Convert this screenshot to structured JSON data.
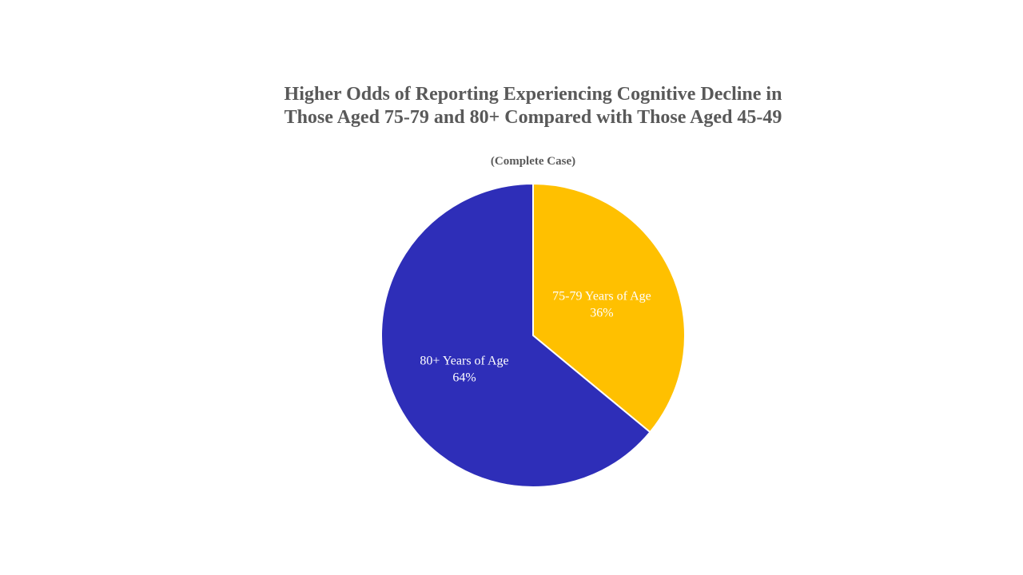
{
  "chart_data": {
    "type": "pie",
    "title": "Higher Odds of Reporting Experiencing Cognitive Decline in Those Aged 75-79 and 80+ Compared with Those Aged 45-49",
    "subtitle": "(Complete Case)",
    "slices": [
      {
        "label": "75-79 Years of Age",
        "value": 36,
        "value_label": "36%",
        "color": "#FFC000"
      },
      {
        "label": "80+ Years of Age",
        "value": 64,
        "value_label": "64%",
        "color": "#2E2EB8"
      }
    ],
    "start_angle": "12 o'clock",
    "direction": "clockwise",
    "legend": "none",
    "slice_border_color": "#FFFFFF"
  }
}
